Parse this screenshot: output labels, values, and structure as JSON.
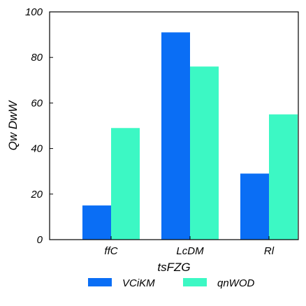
{
  "chart_data": {
    "type": "bar",
    "categories": [
      "ffC",
      "LcDM",
      "Rl"
    ],
    "series": [
      {
        "name": "VCiKM",
        "values": [
          15,
          91,
          29
        ],
        "color": "#0a6ef5"
      },
      {
        "name": "qnWOD",
        "values": [
          49,
          76,
          55
        ],
        "color": "#3cf8c4"
      }
    ],
    "xlabel": "tsFZG",
    "ylabel": "Qw DwW",
    "ylim": [
      0,
      100
    ],
    "yticks": [
      0,
      20,
      40,
      60,
      80,
      100
    ],
    "grid": false,
    "legend_position": "bottom"
  }
}
